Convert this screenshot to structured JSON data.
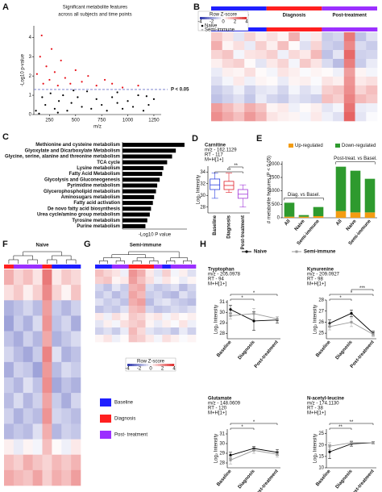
{
  "chart_data": [
    {
      "type": "scatter",
      "panel": "A",
      "title": [
        "Significant metabolite features",
        "across all subjects and time points"
      ],
      "x_label": "m/z",
      "y_label": "-Log10 p-value",
      "x": [
        120,
        180,
        210,
        260,
        300,
        340,
        380,
        420,
        460,
        520,
        560,
        610,
        650,
        700,
        750,
        800,
        850,
        900,
        950,
        1000,
        1050,
        1100,
        1150,
        1200,
        1250,
        150,
        330,
        480,
        900,
        1180,
        130,
        160,
        190,
        220,
        250,
        270,
        300,
        330,
        360,
        400,
        450,
        500,
        560,
        620,
        700,
        780,
        850,
        950,
        1100,
        175
      ],
      "values": [
        0.2,
        0.9,
        0.5,
        1.1,
        0.3,
        0.7,
        1.0,
        0.2,
        0.6,
        0.9,
        0.4,
        1.2,
        0.3,
        0.8,
        0.5,
        0.2,
        0.9,
        0.6,
        0.3,
        0.7,
        0.4,
        1.0,
        0.2,
        0.5,
        0.8,
        0.05,
        0.1,
        1.25,
        1.15,
        0.95,
        2.1,
        3.0,
        1.6,
        2.5,
        1.8,
        3.4,
        2.2,
        1.5,
        2.8,
        1.9,
        1.6,
        2.3,
        1.7,
        2.0,
        1.5,
        1.8,
        1.6,
        1.4,
        1.5,
        4.1
      ],
      "threshold": 1.3,
      "threshold_label": "P < 0.05",
      "above_color": "#e8131b",
      "below_color": "#000000",
      "threshold_color": "#6b74c9",
      "xlim": [
        100,
        1320
      ],
      "xticks": [
        250,
        500,
        750,
        1000,
        1250
      ],
      "ylim": [
        0,
        4.6
      ],
      "yticks": [
        0,
        1,
        2,
        3,
        4
      ]
    },
    {
      "type": "heatmap",
      "panel": "B",
      "groups": [
        "Baseline",
        "Diagnosis",
        "Post-treatment"
      ],
      "group_colors": [
        "#1f1fff",
        "#ff1f1f",
        "#9b30ff"
      ],
      "column_groups": [
        0,
        0,
        0,
        0,
        0,
        1,
        1,
        1,
        1,
        1,
        2,
        2,
        2,
        2,
        2
      ],
      "legend_title": "Row Z-score",
      "zlim": [
        -4,
        4
      ],
      "zticks": [
        -4,
        -2,
        0,
        2,
        4
      ],
      "sample_legend": [
        "Naive",
        "Semi-immune"
      ],
      "matrix": [
        [
          1,
          0.5,
          -0.5,
          0.8,
          0.3,
          0.6,
          0.2,
          1.5,
          -0.3,
          0.4,
          -1,
          -0.8,
          2.5,
          -1.2,
          -0.6
        ],
        [
          1.5,
          0.2,
          0.6,
          -0.4,
          0.9,
          0.3,
          1.2,
          0.1,
          -0.6,
          0.8,
          -0.9,
          -1.1,
          2.2,
          -0.7,
          -1
        ],
        [
          0.8,
          1.1,
          -0.2,
          0.5,
          0.6,
          0.9,
          -0.3,
          0.7,
          0.4,
          1.3,
          -1.2,
          -0.5,
          2.8,
          -0.9,
          -0.8
        ],
        [
          0.3,
          0.7,
          0.9,
          0.1,
          -0.5,
          0.4,
          0.8,
          -0.2,
          1,
          0.5,
          -0.7,
          -1.3,
          2.4,
          -1,
          -0.4
        ],
        [
          -0.4,
          0.3,
          0.2,
          0.6,
          0.1,
          -0.2,
          0.5,
          0.3,
          -0.1,
          0.2,
          0.1,
          -0.3,
          1.8,
          0.2,
          -0.2
        ],
        [
          -0.6,
          -0.2,
          0.4,
          -0.3,
          0.2,
          0.1,
          -0.4,
          0.2,
          0.3,
          -0.1,
          0.5,
          0.3,
          2,
          0.4,
          0.6
        ],
        [
          -1,
          -0.7,
          -0.3,
          -0.9,
          -0.5,
          -0.4,
          -0.8,
          -0.2,
          -0.6,
          -0.3,
          0.9,
          1.1,
          2.1,
          0.8,
          1.2
        ],
        [
          -1.2,
          -0.9,
          -0.6,
          -1.1,
          -0.4,
          -0.8,
          -1,
          -0.5,
          -0.7,
          -0.9,
          1.2,
          0.9,
          2.3,
          1.3,
          1
        ],
        [
          1.8,
          1.3,
          0.8,
          1.5,
          1.1,
          0.2,
          0.4,
          -0.3,
          0.1,
          0.3,
          -0.5,
          -0.2,
          2.6,
          -0.4,
          -0.3
        ],
        [
          2.1,
          1.6,
          1.2,
          1.9,
          1.4,
          0.5,
          0.3,
          0.2,
          -0.2,
          0.4,
          -0.3,
          -0.6,
          2.9,
          -0.5,
          -0.1
        ]
      ]
    },
    {
      "type": "hbar",
      "panel": "C",
      "x_label": "-Log10 P value",
      "color": "#000000",
      "categories": [
        "Methionine and cysteine metabolism",
        "Glyoxylate and Dicarboxylate Metabolism",
        "Glycine, serine, alanine and threonine metabolism",
        "TCA cycle",
        "Lysine metabolism",
        "Fatty Acid Metabolism",
        "Glycolysis and Gluconeogenesis",
        "Pyrimidine metabolism",
        "Glycerophospholipid metabolism",
        "Aminosugars metabolism",
        "Fatty acid activation",
        "De novo fatty acid biosynthesis",
        "Urea cycle/amino group metabolism",
        "Tyrosine metabolism",
        "Purine metabolism"
      ],
      "values": [
        5.0,
        4.3,
        4.0,
        3.6,
        3.3,
        3.2,
        3.0,
        2.8,
        2.7,
        2.55,
        2.45,
        2.3,
        2.2,
        2.0,
        1.85
      ],
      "xlim": [
        0,
        5.2
      ]
    },
    {
      "type": "box",
      "panel": "D",
      "title": "Carnitine",
      "mz": "m/z - 162.1129",
      "rt": "RT - 117",
      "ion": "M+H[1+]",
      "y_label": "Log₂ Intensity",
      "categories": [
        "Baseline",
        "Diagnosis",
        "Post-treatment"
      ],
      "colors": [
        "#2b3ee0",
        "#e0202a",
        "#a035d8"
      ],
      "boxes": [
        {
          "min": 29.5,
          "q1": 31.0,
          "median": 31.8,
          "q3": 32.8,
          "max": 33.8
        },
        {
          "min": 30.5,
          "q1": 31.0,
          "median": 31.7,
          "q3": 32.4,
          "max": 33.8
        },
        {
          "min": 28.0,
          "q1": 29.5,
          "median": 30.2,
          "q3": 31.0,
          "max": 31.8
        }
      ],
      "comparisons": [
        {
          "from": 0,
          "to": 2,
          "label": "**"
        },
        {
          "from": 1,
          "to": 2,
          "label": "**"
        }
      ],
      "ylim": [
        27,
        35
      ],
      "yticks": [
        28,
        30,
        32,
        34
      ]
    },
    {
      "type": "stacked_bar",
      "panel": "E",
      "y_label": "# metabolite features (P < 0.05)",
      "categories": [
        "All",
        "Naive",
        "Semi-immune",
        "All",
        "Naive",
        "Semi-immune"
      ],
      "group_labels": [
        "Diag. vs Basel.",
        "Post-treat. vs Basel."
      ],
      "series": [
        {
          "name": "Up-regulated",
          "color": "#f39c12",
          "values": [
            40,
            40,
            60,
            250,
            200,
            200
          ]
        },
        {
          "name": "Down-regulated",
          "color": "#2e9a2e",
          "values": [
            520,
            60,
            340,
            1650,
            1550,
            1250
          ]
        }
      ],
      "ylim": [
        0,
        2100
      ],
      "yticks": [
        0,
        500,
        1000,
        1500,
        2000
      ]
    },
    {
      "type": "heatmap",
      "panel": "F",
      "title": "Naive",
      "group_colors": [
        "#1f1fff",
        "#ff1f1f",
        "#9b30ff"
      ],
      "column_groups": [
        1,
        2,
        2,
        2,
        1,
        0,
        0,
        0
      ],
      "zlim": [
        -4,
        4
      ],
      "matrix": [
        [
          1.5,
          0.8,
          1.2,
          0.5,
          2.5,
          0.4,
          1,
          0.7
        ],
        [
          0.6,
          1,
          0.3,
          0.9,
          2.2,
          0.8,
          0.2,
          1.1
        ],
        [
          -1.5,
          -1.2,
          -0.8,
          -1.3,
          1.8,
          -1,
          -1.4,
          -0.9
        ],
        [
          -1.8,
          -1,
          -1.5,
          -0.7,
          2,
          -1.2,
          -0.8,
          -1.6
        ],
        [
          -1.2,
          -1.6,
          -0.9,
          -1.4,
          1.6,
          -1.5,
          -1.1,
          -0.7
        ],
        [
          -0.8,
          -1.3,
          -1.7,
          -1,
          2.3,
          -0.6,
          -1.5,
          -1.2
        ],
        [
          -1.6,
          -0.9,
          -1.1,
          -1.8,
          1.9,
          -1.3,
          -0.7,
          -1
        ],
        [
          -1,
          -1.4,
          -0.6,
          -1.2,
          2.1,
          -1.7,
          -1.2,
          -1.5
        ],
        [
          -1.3,
          -0.7,
          -1.4,
          -0.9,
          1.7,
          -1,
          -1.6,
          -0.8
        ],
        [
          -0.9,
          -1.5,
          -1,
          -1.3,
          2,
          -0.8,
          -1,
          -1.3
        ],
        [
          -1.4,
          -1.1,
          -1.3,
          -0.6,
          1.5,
          -1.4,
          -0.9,
          -1.1
        ],
        [
          0.3,
          -0.4,
          0.2,
          -0.2,
          1.2,
          0.1,
          -0.3,
          0.4
        ],
        [
          1.2,
          0.9,
          1.5,
          1.1,
          0.8,
          1.3,
          1,
          1.4
        ],
        [
          1.6,
          1.3,
          1.1,
          1.7,
          0.9,
          1.5,
          1.2,
          1.8
        ]
      ]
    },
    {
      "type": "heatmap",
      "panel": "G",
      "title": "Semi-immune",
      "group_colors": [
        "#1f1fff",
        "#ff1f1f",
        "#9b30ff"
      ],
      "column_groups": [
        0,
        0,
        2,
        2,
        1,
        1,
        1,
        2,
        0,
        2,
        2,
        2
      ],
      "legend_title": "Row Z-score",
      "zlim": [
        -4,
        4
      ],
      "zticks": [
        -4,
        -2,
        0,
        2,
        4
      ],
      "group_legend": [
        "Baseline",
        "Diagnosis",
        "Post- treatment"
      ],
      "matrix": [
        [
          1.2,
          0.8,
          0.5,
          -0.3,
          2,
          1.5,
          0.4,
          -0.5,
          0.9,
          -0.2,
          0.3,
          -0.6
        ],
        [
          0.9,
          1.1,
          0.2,
          0.4,
          1.8,
          1.2,
          0.6,
          -0.3,
          0.5,
          0.1,
          -0.4,
          0.2
        ],
        [
          -0.8,
          -1.2,
          -0.5,
          -1,
          1.4,
          1.6,
          -0.7,
          -1.1,
          -0.9,
          -0.6,
          -1.3,
          -0.8
        ],
        [
          -1.1,
          -0.7,
          -1.3,
          -0.9,
          1.7,
          1.3,
          -1,
          -0.8,
          -1.2,
          -1.4,
          -0.6,
          -1
        ],
        [
          -0.6,
          -1,
          -0.8,
          -1.2,
          1.5,
          1.8,
          -1.3,
          -0.7,
          -0.5,
          -0.9,
          -1.1,
          -1.3
        ],
        [
          -1.2,
          -0.9,
          -1.1,
          -0.6,
          1.2,
          1.4,
          -0.8,
          -1.2,
          -1,
          -0.7,
          -0.9,
          -0.6
        ],
        [
          0.4,
          -0.3,
          0.6,
          0.2,
          1,
          0.8,
          0.3,
          0.5,
          -0.2,
          0.4,
          0.1,
          0.3
        ],
        [
          -0.5,
          0.3,
          -0.2,
          0.6,
          0.9,
          1.1,
          0.2,
          -0.4,
          0.3,
          -0.1,
          0.5,
          -0.3
        ],
        [
          -0.9,
          -0.6,
          -1,
          -0.4,
          1.3,
          0.7,
          -0.5,
          -0.8,
          -0.7,
          -1.1,
          -0.4,
          -0.9
        ],
        [
          0.2,
          0.5,
          -0.3,
          0.1,
          1.1,
          0.9,
          0.4,
          -0.2,
          0.6,
          0.3,
          -0.1,
          0.2
        ]
      ]
    },
    {
      "type": "line",
      "panel": "H",
      "legend": true,
      "title": "Tryptophan",
      "mz": "m/z - 205.0978",
      "rt": "RT - 94",
      "ion": "M+H[1+]",
      "y_label": "Log₂ Intensity",
      "categories": [
        "Baseline",
        "Diagnosis",
        "Post-treatment"
      ],
      "series": [
        {
          "name": "Naive",
          "color": "#000000",
          "values": [
            30.3,
            29.2,
            29.3
          ],
          "errors": [
            0.4,
            0.9,
            0.3
          ]
        },
        {
          "name": "Semi-immune",
          "color": "#9a9a9a",
          "values": [
            29.7,
            29.9,
            29.4
          ],
          "errors": [
            0.3,
            0.5,
            0.2
          ]
        }
      ],
      "comparisons": [
        {
          "from": 0,
          "to": 1,
          "label": "*"
        },
        {
          "from": 0,
          "to": 2,
          "label": "*"
        }
      ],
      "ylim": [
        27.5,
        31.2
      ],
      "yticks": [
        28,
        29,
        30,
        31
      ]
    },
    {
      "type": "line",
      "title": "Kynurenine",
      "mz": "m/z - 209.0927",
      "rt": "RT - 98",
      "ion": "M+H[1+]",
      "y_label": "Log₂ Intensity",
      "categories": [
        "Baseline",
        "Diagnosis",
        "Post-treatment"
      ],
      "series": [
        {
          "name": "Naive",
          "color": "#000000",
          "values": [
            25.9,
            26.8,
            25.0
          ],
          "errors": [
            0.3,
            0.3,
            0.2
          ]
        },
        {
          "name": "Semi-immune",
          "color": "#9a9a9a",
          "values": [
            25.6,
            26.0,
            24.9
          ],
          "errors": [
            0.3,
            0.4,
            0.2
          ]
        }
      ],
      "comparisons": [
        {
          "from": 0,
          "to": 1,
          "label": "*"
        },
        {
          "from": 0,
          "to": 2,
          "label": "*"
        },
        {
          "from": 1,
          "to": 2,
          "label": "***"
        }
      ],
      "ylim": [
        24.5,
        28
      ],
      "yticks": [
        25,
        26,
        27,
        28
      ]
    },
    {
      "type": "line",
      "title": "Glutamate",
      "mz": "m/z - 148.0609",
      "rt": "RT - 120",
      "ion": "M+H[1+]",
      "y_label": "Log₂ Intensity",
      "categories": [
        "Baseline",
        "Diagnosis",
        "Post-treatment"
      ],
      "series": [
        {
          "name": "Naive",
          "color": "#000000",
          "values": [
            28.8,
            29.5,
            29.1
          ],
          "errors": [
            0.3,
            0.2,
            0.3
          ]
        },
        {
          "name": "Semi-immune",
          "color": "#9a9a9a",
          "values": [
            28.3,
            29.3,
            28.9
          ],
          "errors": [
            0.4,
            0.3,
            0.3
          ]
        }
      ],
      "comparisons": [
        {
          "from": 0,
          "to": 1,
          "label": "*"
        },
        {
          "from": 0,
          "to": 2,
          "label": "*"
        }
      ],
      "ylim": [
        27.5,
        31.5
      ],
      "yticks": [
        28,
        29,
        30,
        31
      ]
    },
    {
      "type": "line",
      "title": "N-acetyl-leucine",
      "mz": "m/z - 174.1130",
      "rt": "RT - 38",
      "ion": "M+H[1+]",
      "y_label": "Log₂ Intensity",
      "categories": [
        "Baseline",
        "Diagnosis",
        "Post-treatment"
      ],
      "series": [
        {
          "name": "Naive",
          "color": "#000000",
          "values": [
            17,
            20.5,
            21
          ],
          "errors": [
            3,
            1,
            0.5
          ]
        },
        {
          "name": "Semi-immune",
          "color": "#9a9a9a",
          "values": [
            19.5,
            21,
            21
          ],
          "errors": [
            1.5,
            0.8,
            0.5
          ]
        }
      ],
      "comparisons": [
        {
          "from": 0,
          "to": 1,
          "label": "**"
        },
        {
          "from": 0,
          "to": 2,
          "label": "**"
        }
      ],
      "ylim": [
        10,
        27
      ],
      "yticks": [
        10,
        15,
        20,
        25
      ]
    }
  ]
}
